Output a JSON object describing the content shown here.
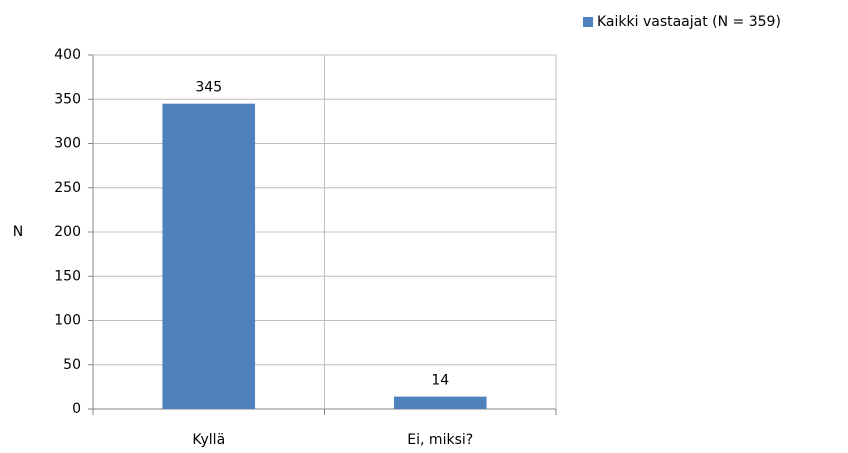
{
  "chart_data": {
    "type": "bar",
    "y_label": "N",
    "categories": [
      "Kyllä",
      "Ei, miksi?"
    ],
    "series": [
      {
        "name": "Kaikki vastaajat (N = 359)",
        "color": "#4f81bd",
        "values": [
          345,
          14
        ]
      }
    ],
    "ylim": [
      0,
      400
    ],
    "yticks": [
      0,
      50,
      100,
      150,
      200,
      250,
      300,
      350,
      400
    ],
    "grid": true,
    "legend": "top-right",
    "data_labels": true
  }
}
